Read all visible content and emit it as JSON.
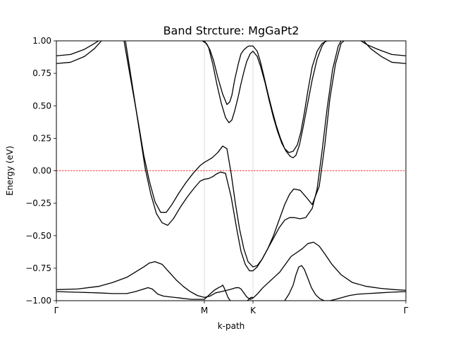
{
  "chart_data": {
    "type": "line",
    "title": "Band Strcture: MgGaPt2",
    "xlabel": "k-path",
    "ylabel": "Energy (eV)",
    "xlim": [
      0,
      1
    ],
    "ylim": [
      -1.0,
      1.0
    ],
    "yticks": [
      -1.0,
      -0.75,
      -0.5,
      -0.25,
      0.0,
      0.25,
      0.5,
      0.75,
      1.0
    ],
    "yticklabels": [
      "−1.00",
      "−0.75",
      "−0.50",
      "−0.25",
      "0.00",
      "0.25",
      "0.50",
      "0.75",
      "1.00"
    ],
    "high_symmetry_points": [
      {
        "label": "Γ",
        "x": 0.0
      },
      {
        "label": "M",
        "x": 0.4234
      },
      {
        "label": "K",
        "x": 0.5625
      },
      {
        "label": "Γ",
        "x": 1.0
      }
    ],
    "fermi_level": 0.0,
    "colors": {
      "bands": "#000000",
      "fermi": "#ff0000",
      "vlines": "#d3d3d3"
    },
    "series": [
      {
        "x": [
          0.0,
          0.0403,
          0.0806,
          0.1089,
          0.121
        ],
        "y": [
          0.885,
          0.895,
          0.935,
          0.98,
          1.0
        ]
      },
      {
        "x": [
          0.0,
          0.0403,
          0.0806,
          0.1089,
          0.129
        ],
        "y": [
          0.825,
          0.835,
          0.88,
          0.94,
          1.0
        ]
      },
      {
        "x": [
          0.871,
          0.8891,
          0.9194,
          0.9597,
          1.0
        ],
        "y": [
          1.0,
          0.97,
          0.935,
          0.895,
          0.885
        ]
      },
      {
        "x": [
          0.879,
          0.8992,
          0.9294,
          0.9597,
          1.0
        ],
        "y": [
          1.0,
          0.94,
          0.88,
          0.835,
          0.825
        ]
      },
      {
        "x": [
          0.1935,
          0.2117,
          0.2339,
          0.25,
          0.2661,
          0.2823,
          0.2984,
          0.3145,
          0.3306,
          0.3508,
          0.371,
          0.3911,
          0.4113,
          0.4234,
          0.4335,
          0.4456,
          0.4617,
          0.4758,
          0.4879,
          0.5,
          0.5121,
          0.5242,
          0.5363,
          0.5484,
          0.5625,
          0.5746,
          0.5887,
          0.6048,
          0.621,
          0.6371,
          0.6532,
          0.6673,
          0.6794,
          0.6976,
          0.7137,
          0.7319,
          0.752,
          0.7681,
          0.7823,
          0.7984,
          0.8145,
          0.8226
        ],
        "y": [
          1.0,
          0.72,
          0.38,
          0.12,
          -0.08,
          -0.24,
          -0.32,
          -0.32,
          -0.26,
          -0.17,
          -0.09,
          -0.02,
          0.04,
          0.065,
          0.08,
          0.1,
          0.14,
          0.19,
          0.17,
          -0.02,
          -0.25,
          -0.45,
          -0.6,
          -0.7,
          -0.74,
          -0.73,
          -0.68,
          -0.6,
          -0.5,
          -0.38,
          -0.26,
          -0.18,
          -0.14,
          -0.15,
          -0.2,
          -0.26,
          -0.12,
          0.2,
          0.55,
          0.82,
          0.98,
          1.0
        ]
      },
      {
        "x": [
          0.1976,
          0.2137,
          0.2379,
          0.254,
          0.2702,
          0.2863,
          0.3024,
          0.3185,
          0.3347,
          0.3548,
          0.375,
          0.3952,
          0.4113,
          0.4234,
          0.4355,
          0.4476,
          0.4577,
          0.4698,
          0.4839,
          0.5,
          0.5161,
          0.5282,
          0.5403,
          0.5524,
          0.5625,
          0.5746,
          0.5887,
          0.6048,
          0.621,
          0.6371,
          0.6532,
          0.6673,
          0.6794,
          0.6976,
          0.7137,
          0.7319,
          0.746,
          0.7601,
          0.7742,
          0.7903,
          0.8065,
          0.8145
        ],
        "y": [
          1.0,
          0.72,
          0.3,
          0.02,
          -0.18,
          -0.33,
          -0.4,
          -0.42,
          -0.37,
          -0.28,
          -0.2,
          -0.13,
          -0.08,
          -0.065,
          -0.06,
          -0.045,
          -0.025,
          -0.01,
          -0.02,
          -0.2,
          -0.45,
          -0.62,
          -0.72,
          -0.77,
          -0.77,
          -0.74,
          -0.68,
          -0.6,
          -0.52,
          -0.44,
          -0.38,
          -0.36,
          -0.36,
          -0.37,
          -0.36,
          -0.29,
          -0.14,
          0.15,
          0.47,
          0.78,
          0.96,
          1.0
        ]
      },
      {
        "x": [
          0.4173,
          0.4294,
          0.4395,
          0.4496,
          0.4617,
          0.4758,
          0.4879,
          0.496,
          0.502,
          0.5101,
          0.5202,
          0.5282,
          0.5363,
          0.5444,
          0.5504,
          0.5625,
          0.5746,
          0.5827,
          0.5927,
          0.6048,
          0.6169,
          0.629,
          0.6411,
          0.6532,
          0.6653,
          0.6774,
          0.6895,
          0.6996,
          0.7097,
          0.7198,
          0.7319,
          0.746,
          0.7601,
          0.7742,
          0.7843
        ],
        "y": [
          1.0,
          0.98,
          0.93,
          0.85,
          0.72,
          0.59,
          0.51,
          0.53,
          0.58,
          0.7,
          0.82,
          0.9,
          0.93,
          0.95,
          0.96,
          0.96,
          0.92,
          0.85,
          0.74,
          0.6,
          0.47,
          0.35,
          0.25,
          0.17,
          0.14,
          0.15,
          0.2,
          0.3,
          0.45,
          0.62,
          0.8,
          0.92,
          0.98,
          1.0,
          1.0
        ]
      },
      {
        "x": [
          0.4234,
          0.4355,
          0.4476,
          0.4597,
          0.4718,
          0.4839,
          0.4939,
          0.502,
          0.5101,
          0.5202,
          0.5282,
          0.5363,
          0.5444,
          0.5544,
          0.5625,
          0.5746,
          0.5847,
          0.5968,
          0.6089,
          0.621,
          0.6331,
          0.6452,
          0.6573,
          0.6694,
          0.6774,
          0.6855,
          0.6956,
          0.7056,
          0.7177,
          0.7319,
          0.746,
          0.7601,
          0.7702
        ],
        "y": [
          1.0,
          0.95,
          0.82,
          0.66,
          0.52,
          0.41,
          0.37,
          0.39,
          0.46,
          0.57,
          0.67,
          0.76,
          0.84,
          0.9,
          0.92,
          0.88,
          0.8,
          0.68,
          0.54,
          0.41,
          0.3,
          0.21,
          0.15,
          0.11,
          0.1,
          0.12,
          0.2,
          0.33,
          0.5,
          0.7,
          0.86,
          0.96,
          1.0
        ]
      },
      {
        "x": [
          0.0,
          0.0605,
          0.121,
          0.1613,
          0.2016,
          0.2258,
          0.25,
          0.2661,
          0.2823,
          0.3024,
          0.3226,
          0.3427,
          0.3629,
          0.3831,
          0.4032,
          0.4234,
          0.4395,
          0.4556,
          0.4718,
          0.4879,
          0.502,
          0.5141,
          0.5222,
          0.5282,
          0.5363,
          0.5444,
          0.5544,
          0.5625,
          0.5746,
          0.5907,
          0.6069,
          0.623,
          0.6391,
          0.6552,
          0.6714,
          0.6875,
          0.7036,
          0.7198,
          0.7359,
          0.752,
          0.7681,
          0.7883,
          0.8145,
          0.8468,
          0.8871,
          0.9274,
          0.9677,
          1.0
        ],
        "y": [
          -0.915,
          -0.91,
          -0.89,
          -0.86,
          -0.82,
          -0.78,
          -0.74,
          -0.71,
          -0.7,
          -0.72,
          -0.78,
          -0.84,
          -0.89,
          -0.93,
          -0.96,
          -0.975,
          -0.965,
          -0.94,
          -0.93,
          -0.92,
          -0.91,
          -0.9,
          -0.9,
          -0.91,
          -0.94,
          -0.97,
          -0.99,
          -0.98,
          -0.95,
          -0.9,
          -0.86,
          -0.82,
          -0.78,
          -0.72,
          -0.66,
          -0.63,
          -0.6,
          -0.56,
          -0.55,
          -0.58,
          -0.64,
          -0.72,
          -0.8,
          -0.86,
          -0.89,
          -0.905,
          -0.915,
          -0.92
        ]
      },
      {
        "x": [
          0.0,
          0.0605,
          0.121,
          0.1613,
          0.2016,
          0.2258,
          0.25,
          0.2621,
          0.2742,
          0.2903,
          0.3065,
          0.3226,
          0.3387,
          0.3548,
          0.371,
          0.3871,
          0.4032,
          0.4234,
          0.4395,
          0.4516,
          0.4637,
          0.4718,
          0.4758,
          0.4798,
          0.4859,
          0.4919,
          0.498
        ],
        "y": [
          -0.93,
          -0.935,
          -0.94,
          -0.945,
          -0.945,
          -0.93,
          -0.91,
          -0.9,
          -0.91,
          -0.95,
          -0.965,
          -0.97,
          -0.975,
          -0.98,
          -0.985,
          -0.99,
          -0.99,
          -0.99,
          -0.95,
          -0.92,
          -0.9,
          -0.89,
          -0.88,
          -0.9,
          -0.94,
          -0.98,
          -1.0
        ]
      },
      {
        "x": [
          0.5464,
          0.5565,
          0.5625
        ],
        "y": [
          -1.0,
          -0.975,
          -0.975
        ]
      },
      {
        "x": [
          0.6532,
          0.6653,
          0.6774,
          0.6855,
          0.6936,
          0.7016,
          0.7097,
          0.7198,
          0.7298,
          0.7419,
          0.754,
          0.7661,
          0.7823,
          0.7984,
          0.8185,
          0.8387,
          0.8629,
          0.8911,
          0.9234,
          0.9556,
          1.0
        ],
        "y": [
          -1.0,
          -0.95,
          -0.88,
          -0.8,
          -0.74,
          -0.73,
          -0.76,
          -0.83,
          -0.9,
          -0.955,
          -0.985,
          -1.0,
          -1.0,
          -0.99,
          -0.975,
          -0.96,
          -0.95,
          -0.945,
          -0.94,
          -0.935,
          -0.93
        ]
      }
    ]
  }
}
